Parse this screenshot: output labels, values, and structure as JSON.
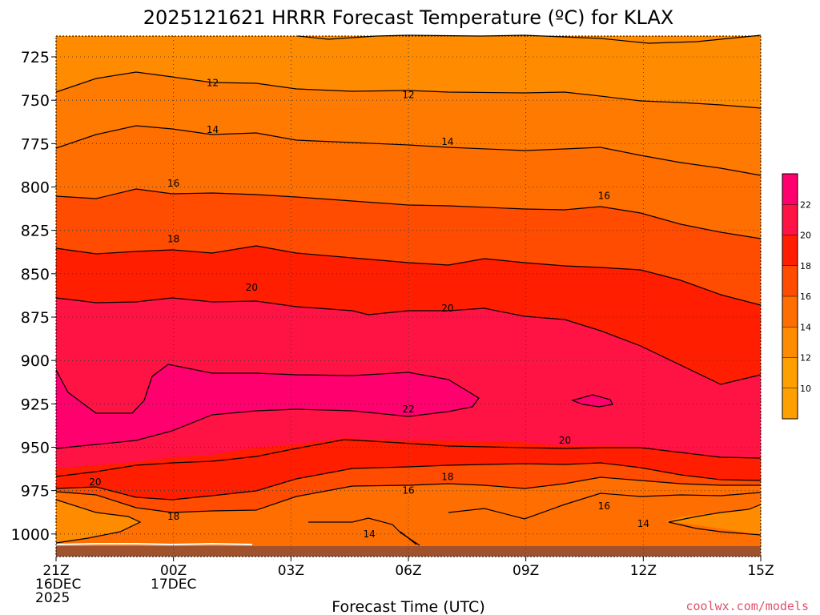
{
  "chart_data": {
    "type": "heatmap",
    "title": "2025121621 HRRR Forecast Temperature (ºC) for KLAX",
    "xlabel": "Forecast Time (UTC)",
    "ylabel": "",
    "x_ticks": [
      {
        "hour": 0,
        "lines": [
          "21Z",
          "16DEC",
          "2025"
        ]
      },
      {
        "hour": 3,
        "lines": [
          "00Z",
          "17DEC"
        ]
      },
      {
        "hour": 6,
        "lines": [
          "03Z"
        ]
      },
      {
        "hour": 9,
        "lines": [
          "06Z"
        ]
      },
      {
        "hour": 12,
        "lines": [
          "09Z"
        ]
      },
      {
        "hour": 15,
        "lines": [
          "12Z"
        ]
      },
      {
        "hour": 18,
        "lines": [
          "15Z"
        ]
      }
    ],
    "xlim": [
      0,
      18
    ],
    "y_ticks": [
      725,
      750,
      775,
      800,
      825,
      850,
      875,
      900,
      925,
      950,
      975,
      1000
    ],
    "ylim": [
      713,
      1013
    ],
    "y_inverted": true,
    "grid": true,
    "contour_interval": 1,
    "contour_labels": [
      {
        "text": "12",
        "hour": 4.0,
        "p": 740
      },
      {
        "text": "12",
        "hour": 9.0,
        "p": 747
      },
      {
        "text": "14",
        "hour": 4.0,
        "p": 767
      },
      {
        "text": "14",
        "hour": 10.0,
        "p": 774
      },
      {
        "text": "16",
        "hour": 3.0,
        "p": 798
      },
      {
        "text": "16",
        "hour": 14.0,
        "p": 805
      },
      {
        "text": "18",
        "hour": 3.0,
        "p": 830
      },
      {
        "text": "20",
        "hour": 5.0,
        "p": 858
      },
      {
        "text": "20",
        "hour": 10.0,
        "p": 870
      },
      {
        "text": "22",
        "hour": 9.0,
        "p": 928
      },
      {
        "text": "20",
        "hour": 13.0,
        "p": 946
      },
      {
        "text": "20",
        "hour": 1.0,
        "p": 970
      },
      {
        "text": "18",
        "hour": 10.0,
        "p": 967
      },
      {
        "text": "16",
        "hour": 9.0,
        "p": 975
      },
      {
        "text": "16",
        "hour": 14.0,
        "p": 984
      },
      {
        "text": "18",
        "hour": 3.0,
        "p": 990
      },
      {
        "text": "14",
        "hour": 15.0,
        "p": 994
      },
      {
        "text": "14",
        "hour": 8.0,
        "p": 1000
      }
    ],
    "colorbar": {
      "levels": [
        10,
        12,
        14,
        16,
        18,
        20,
        22
      ],
      "colors": [
        "#ffa000",
        "#ff8c00",
        "#ff6e00",
        "#ff4c00",
        "#ff1e00",
        "#ff1244",
        "#ff006e"
      ]
    },
    "terrain_color": "#a0522d"
  },
  "credit": "coolwx.com/models"
}
